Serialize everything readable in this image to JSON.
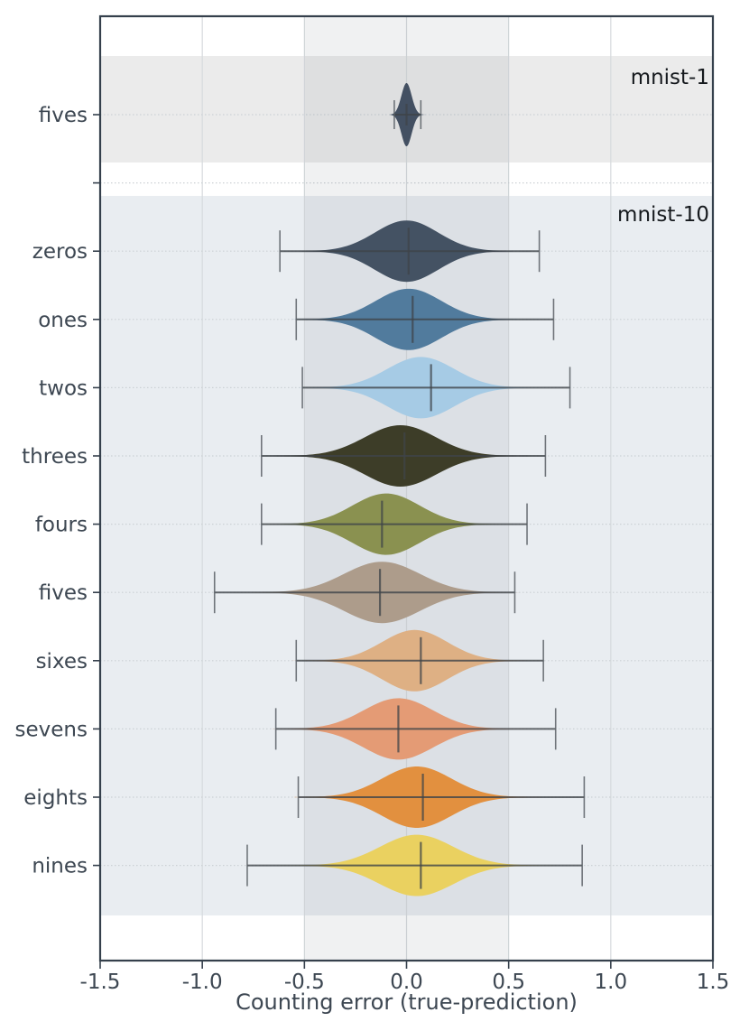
{
  "chart_data": {
    "type": "violin",
    "orientation": "horizontal",
    "xlabel": "Counting error (true-prediction)",
    "xlim": [
      -1.5,
      1.5
    ],
    "xtick_values": [
      -1.5,
      -1.0,
      -0.5,
      0.0,
      0.5,
      1.0,
      1.5
    ],
    "xtick_labels": [
      "-1.5",
      "-1.0",
      "-0.5",
      "0.0",
      "0.5",
      "1.0",
      "1.5"
    ],
    "highlight_band": {
      "x0": -0.5,
      "x1": 0.5
    },
    "grid": true,
    "legend_position": "none",
    "panels": [
      {
        "label": "mnist-1",
        "band_color": "#ebebeb",
        "rows": [
          {
            "category": "fives",
            "color": "#435062",
            "whisker_min": -0.06,
            "whisker_max": 0.07,
            "median": 0.0,
            "peak": 0.0,
            "sigma": 0.025
          }
        ]
      },
      {
        "label": "mnist-10",
        "band_color": "#e9edf1",
        "rows": [
          {
            "category": "zeros",
            "color": "#445263",
            "whisker_min": -0.62,
            "whisker_max": 0.65,
            "median": 0.01,
            "peak": 0.0,
            "sigma": 0.155
          },
          {
            "category": "ones",
            "color": "#517b9d",
            "whisker_min": -0.54,
            "whisker_max": 0.72,
            "median": 0.03,
            "peak": 0.01,
            "sigma": 0.16
          },
          {
            "category": "twos",
            "color": "#a6cbe5",
            "whisker_min": -0.51,
            "whisker_max": 0.8,
            "median": 0.12,
            "peak": 0.07,
            "sigma": 0.165
          },
          {
            "category": "threes",
            "color": "#3d3d28",
            "whisker_min": -0.71,
            "whisker_max": 0.68,
            "median": -0.01,
            "peak": -0.03,
            "sigma": 0.175
          },
          {
            "category": "fours",
            "color": "#8a9150",
            "whisker_min": -0.71,
            "whisker_max": 0.59,
            "median": -0.12,
            "peak": -0.1,
            "sigma": 0.165
          },
          {
            "category": "fives",
            "color": "#ad9c8b",
            "whisker_min": -0.94,
            "whisker_max": 0.53,
            "median": -0.13,
            "peak": -0.12,
            "sigma": 0.185
          },
          {
            "category": "sixes",
            "color": "#deb084",
            "whisker_min": -0.54,
            "whisker_max": 0.67,
            "median": 0.07,
            "peak": 0.04,
            "sigma": 0.16
          },
          {
            "category": "sevens",
            "color": "#e49b75",
            "whisker_min": -0.64,
            "whisker_max": 0.73,
            "median": -0.04,
            "peak": -0.04,
            "sigma": 0.17
          },
          {
            "category": "eights",
            "color": "#e2903f",
            "whisker_min": -0.53,
            "whisker_max": 0.87,
            "median": 0.08,
            "peak": 0.05,
            "sigma": 0.17
          },
          {
            "category": "nines",
            "color": "#ead160",
            "whisker_min": -0.78,
            "whisker_max": 0.86,
            "median": 0.07,
            "peak": 0.05,
            "sigma": 0.18
          }
        ]
      }
    ]
  },
  "colors": {
    "background": "#ffffff",
    "spine": "#35404c",
    "grid_vertical": "#d6dadd",
    "grid_dotted": "#ccd1d5",
    "highlight_overlay": "rgba(110,120,130,0.10)",
    "whisker_line": "#3f4449",
    "whisker_cap": "#5a6066",
    "median_line": "#3f4449",
    "text": "#3d4752",
    "panel_text": "#15191d"
  }
}
